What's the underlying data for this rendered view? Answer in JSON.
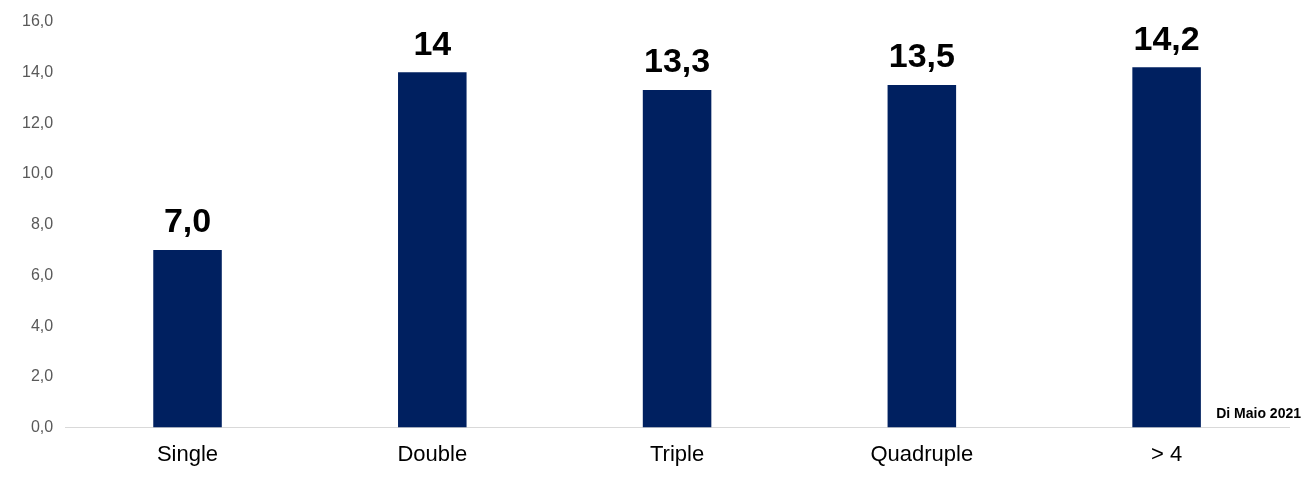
{
  "chart_data": {
    "type": "bar",
    "categories": [
      "Single",
      "Double",
      "Triple",
      "Quadruple",
      "> 4"
    ],
    "values": [
      7.0,
      14,
      13.3,
      13.5,
      14.2
    ],
    "value_labels": [
      "7,0",
      "14",
      "13,3",
      "13,5",
      "14,2"
    ],
    "color": "#002060",
    "ylim": [
      0,
      16
    ],
    "yticks": [
      {
        "value": 0,
        "label": "0,0"
      },
      {
        "value": 2,
        "label": "2,0"
      },
      {
        "value": 4,
        "label": "4,0"
      },
      {
        "value": 6,
        "label": "6,0"
      },
      {
        "value": 8,
        "label": "8,0"
      },
      {
        "value": 10,
        "label": "10,0"
      },
      {
        "value": 12,
        "label": "12,0"
      },
      {
        "value": 14,
        "label": "14,0"
      },
      {
        "value": 16,
        "label": "16,0"
      }
    ],
    "grid": false,
    "legend": false,
    "annotations": [
      "Di Maio 2021"
    ]
  }
}
